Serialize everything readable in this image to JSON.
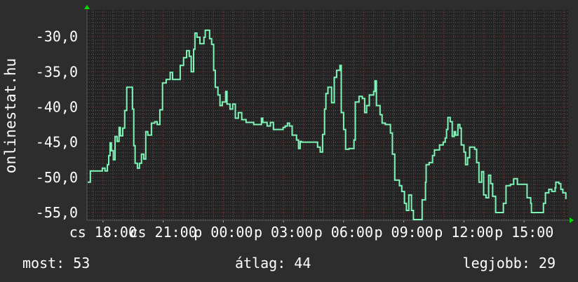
{
  "chart_data": {
    "type": "line",
    "title": "",
    "ylabel": "onlinestat.hu",
    "xlabel": "",
    "ylim": [
      -56.1,
      -26.2
    ],
    "xlim": [
      "17:12",
      "17:12"
    ],
    "grid": true,
    "y_ticks": [
      -30,
      -35,
      -40,
      -45,
      -50,
      -55
    ],
    "y_tick_labels": [
      "-30,0",
      "-35,0",
      "-40,0",
      "-45,0",
      "-50,0",
      "-55,0"
    ],
    "x_ticks": [
      "18:00",
      "21:00",
      "00:00",
      "03:00",
      "06:00",
      "09:00",
      "12:00",
      "15:00"
    ],
    "x_tick_labels": [
      "cs 18:00",
      "cs 21:00",
      "p 00:00",
      "p 03:00",
      "p 06:00",
      "p 09:00",
      "p 12:00",
      "p 15:00"
    ],
    "colors": {
      "line": "#7ff5b8",
      "background": "#2d2d2d",
      "canvas": "#232323",
      "major_grid": "#8a3a3a",
      "minor_grid": "#5a5a5a",
      "arrow": "#00e000"
    },
    "series": [
      {
        "x": [
          "17:14",
          "17:22",
          "17:56",
          "17:58",
          "18:06",
          "18:13",
          "18:17",
          "18:21",
          "18:25",
          "18:31",
          "18:36",
          "18:42",
          "18:48",
          "18:52",
          "18:59",
          "19:05",
          "19:11",
          "19:24",
          "19:28",
          "19:32",
          "19:36",
          "19:43",
          "19:49",
          "19:55",
          "20:02",
          "20:08",
          "20:14",
          "20:25",
          "20:35",
          "20:42",
          "20:50",
          "20:58",
          "21:09",
          "21:21",
          "21:28",
          "21:47",
          "21:51",
          "22:01",
          "22:10",
          "22:18",
          "22:24",
          "22:31",
          "22:35",
          "22:41",
          "22:50",
          "23:02",
          "23:06",
          "23:15",
          "23:19",
          "23:25",
          "23:31",
          "23:36",
          "23:44",
          "23:50",
          "23:57",
          "00:07",
          "00:11",
          "00:20",
          "00:28",
          "00:36",
          "00:45",
          "00:55",
          "01:08",
          "01:27",
          "01:31",
          "01:54",
          "01:58",
          "02:07",
          "02:11",
          "02:21",
          "02:30",
          "02:51",
          "02:59",
          "03:05",
          "03:12",
          "03:18",
          "03:26",
          "03:39",
          "03:45",
          "03:50",
          "03:54",
          "04:36",
          "04:42",
          "04:50",
          "04:57",
          "05:03",
          "05:07",
          "05:13",
          "05:24",
          "05:32",
          "05:39",
          "05:49",
          "05:53",
          "06:00",
          "06:06",
          "06:16",
          "06:31",
          "06:35",
          "06:46",
          "06:56",
          "07:03",
          "07:09",
          "07:17",
          "07:30",
          "07:34",
          "07:38",
          "07:49",
          "07:55",
          "08:05",
          "08:20",
          "08:26",
          "08:33",
          "08:47",
          "08:54",
          "09:02",
          "09:08",
          "09:15",
          "09:23",
          "09:29",
          "09:46",
          "09:55",
          "10:01",
          "10:05",
          "10:07",
          "10:16",
          "10:26",
          "10:32",
          "10:47",
          "10:58",
          "11:04",
          "11:08",
          "11:12",
          "11:19",
          "11:25",
          "11:31",
          "11:35",
          "11:42",
          "11:48",
          "11:52",
          "12:00",
          "12:05",
          "12:11",
          "12:17",
          "12:32",
          "12:38",
          "12:45",
          "12:53",
          "12:59",
          "13:06",
          "13:14",
          "13:20",
          "13:26",
          "13:35",
          "13:47",
          "13:58",
          "14:06",
          "14:19",
          "14:29",
          "14:40",
          "15:01",
          "15:09",
          "15:20",
          "15:22",
          "15:51",
          "15:58",
          "16:04",
          "16:14",
          "16:23",
          "16:33",
          "16:35",
          "16:44",
          "16:50",
          "16:56",
          "17:05"
        ],
        "y": [
          -50.7,
          -49.1,
          -49.1,
          -48.7,
          -49.1,
          -48.2,
          -46.9,
          -45.1,
          -46.2,
          -47.5,
          -44.2,
          -44.9,
          -42.9,
          -44.1,
          -43.0,
          -40.5,
          -37.2,
          -37.2,
          -40.3,
          -45.5,
          -48.0,
          -48.7,
          -48.0,
          -46.7,
          -47.4,
          -43.5,
          -44.0,
          -42.3,
          -42.1,
          -42.5,
          -40.4,
          -36.6,
          -36.1,
          -35.1,
          -36.1,
          -36.1,
          -34.1,
          -33.0,
          -32.0,
          -32.8,
          -35.0,
          -31.8,
          -29.5,
          -30.1,
          -31.0,
          -30.1,
          -29.1,
          -29.1,
          -30.3,
          -31.1,
          -34.8,
          -37.2,
          -38.3,
          -39.8,
          -39.3,
          -37.8,
          -39.6,
          -40.3,
          -39.6,
          -41.6,
          -40.8,
          -41.8,
          -42.2,
          -42.2,
          -42.5,
          -41.6,
          -42.2,
          -42.2,
          -42.7,
          -42.2,
          -43.2,
          -43.2,
          -42.9,
          -42.7,
          -42.3,
          -42.7,
          -44.0,
          -44.7,
          -45.9,
          -44.9,
          -45.0,
          -45.0,
          -45.7,
          -46.4,
          -43.9,
          -40.3,
          -38.1,
          -37.2,
          -39.4,
          -35.8,
          -34.8,
          -34.1,
          -40.8,
          -43.2,
          -46.0,
          -45.9,
          -44.7,
          -39.3,
          -38.5,
          -38.8,
          -40.8,
          -39.8,
          -38.3,
          -37.8,
          -36.3,
          -39.8,
          -41.1,
          -42.3,
          -42.5,
          -43.7,
          -46.7,
          -50.4,
          -51.2,
          -52.0,
          -53.7,
          -54.7,
          -52.5,
          -54.7,
          -56.0,
          -56.0,
          -53.2,
          -53.2,
          -50.7,
          -48.2,
          -47.9,
          -46.9,
          -46.1,
          -45.4,
          -45.0,
          -44.4,
          -43.2,
          -41.5,
          -42.1,
          -44.2,
          -43.5,
          -44.0,
          -42.5,
          -43.0,
          -45.4,
          -46.4,
          -48.2,
          -47.2,
          -45.7,
          -46.0,
          -47.9,
          -50.7,
          -49.2,
          -52.5,
          -52.9,
          -49.7,
          -50.9,
          -52.7,
          -55.0,
          -55.0,
          -53.7,
          -51.2,
          -51.0,
          -50.2,
          -51.0,
          -51.0,
          -52.9,
          -53.7,
          -55.0,
          -55.0,
          -53.7,
          -52.2,
          -51.7,
          -52.0,
          -51.5,
          -50.7,
          -50.9,
          -51.7,
          -52.2,
          -53.1
        ]
      }
    ]
  },
  "legend": {
    "current": "most: 53",
    "average": "átlag: 44",
    "best": "legjobb: 29"
  }
}
